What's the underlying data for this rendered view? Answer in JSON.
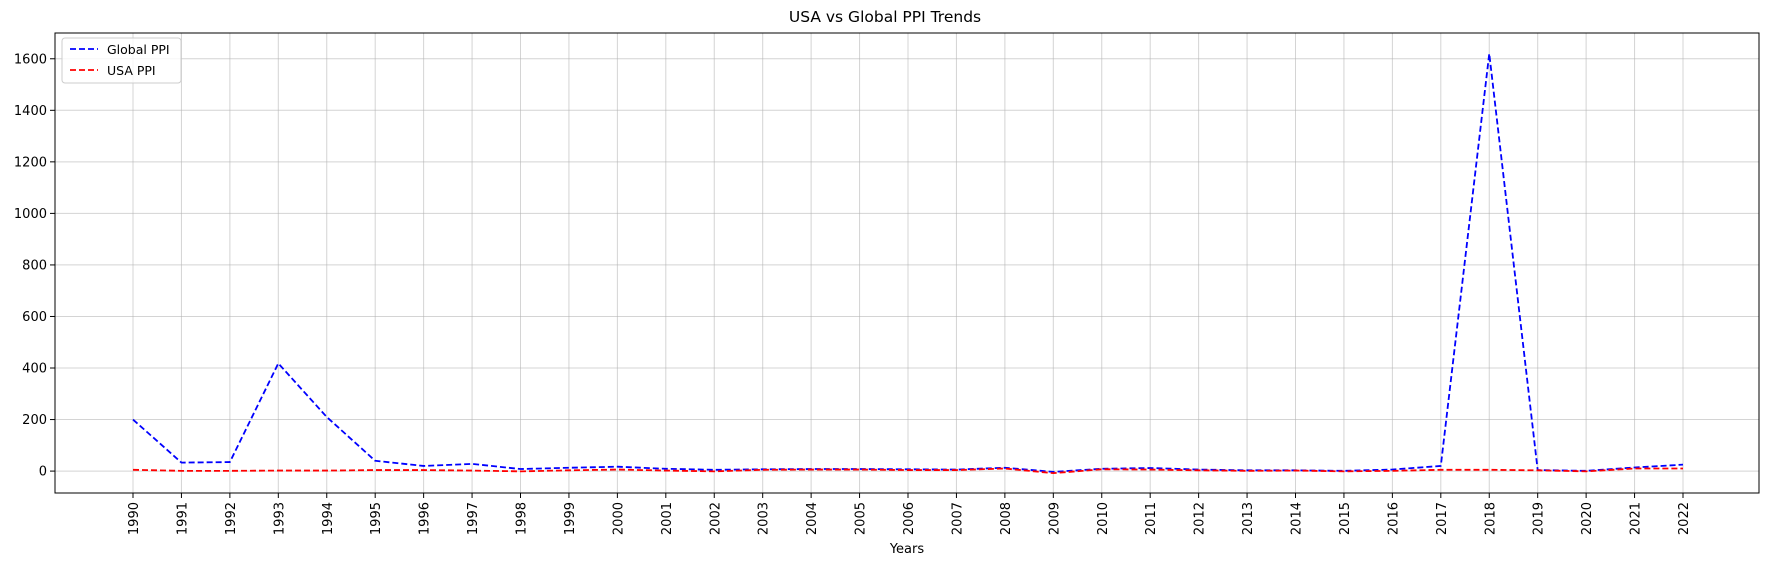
{
  "chart_data": {
    "type": "line",
    "title": "USA vs Global PPI Trends",
    "xlabel": "Years",
    "ylabel": "",
    "x": [
      "1990",
      "1991",
      "1992",
      "1993",
      "1994",
      "1995",
      "1996",
      "1997",
      "1998",
      "1999",
      "2000",
      "2001",
      "2002",
      "2003",
      "2004",
      "2005",
      "2006",
      "2007",
      "2008",
      "2009",
      "2010",
      "2011",
      "2012",
      "2013",
      "2014",
      "2015",
      "2016",
      "2017",
      "2018",
      "2019",
      "2020",
      "2021",
      "2022"
    ],
    "ylim": [
      -85,
      1700
    ],
    "yticks": [
      0,
      200,
      400,
      600,
      800,
      1000,
      1200,
      1400,
      1600
    ],
    "grid": true,
    "legend_position": "top-left",
    "series": [
      {
        "name": "Global PPI",
        "color": "#0000ff",
        "linestyle": "dashed",
        "values": [
          200,
          33,
          35,
          418,
          210,
          40,
          20,
          28,
          8,
          13,
          17,
          9,
          5,
          7,
          8,
          8,
          7,
          6,
          13,
          -3,
          9,
          12,
          6,
          3,
          3,
          1,
          6,
          20,
          1620,
          4,
          1,
          14,
          25
        ]
      },
      {
        "name": "USA PPI",
        "color": "#ff0000",
        "linestyle": "dashed",
        "values": [
          5,
          1,
          1,
          2,
          2,
          4,
          4,
          2,
          -1,
          3,
          6,
          2,
          -1,
          5,
          6,
          6,
          4,
          4,
          10,
          -8,
          7,
          6,
          3,
          1,
          2,
          -1,
          1,
          5,
          5,
          3,
          -1,
          10,
          10
        ]
      }
    ]
  }
}
